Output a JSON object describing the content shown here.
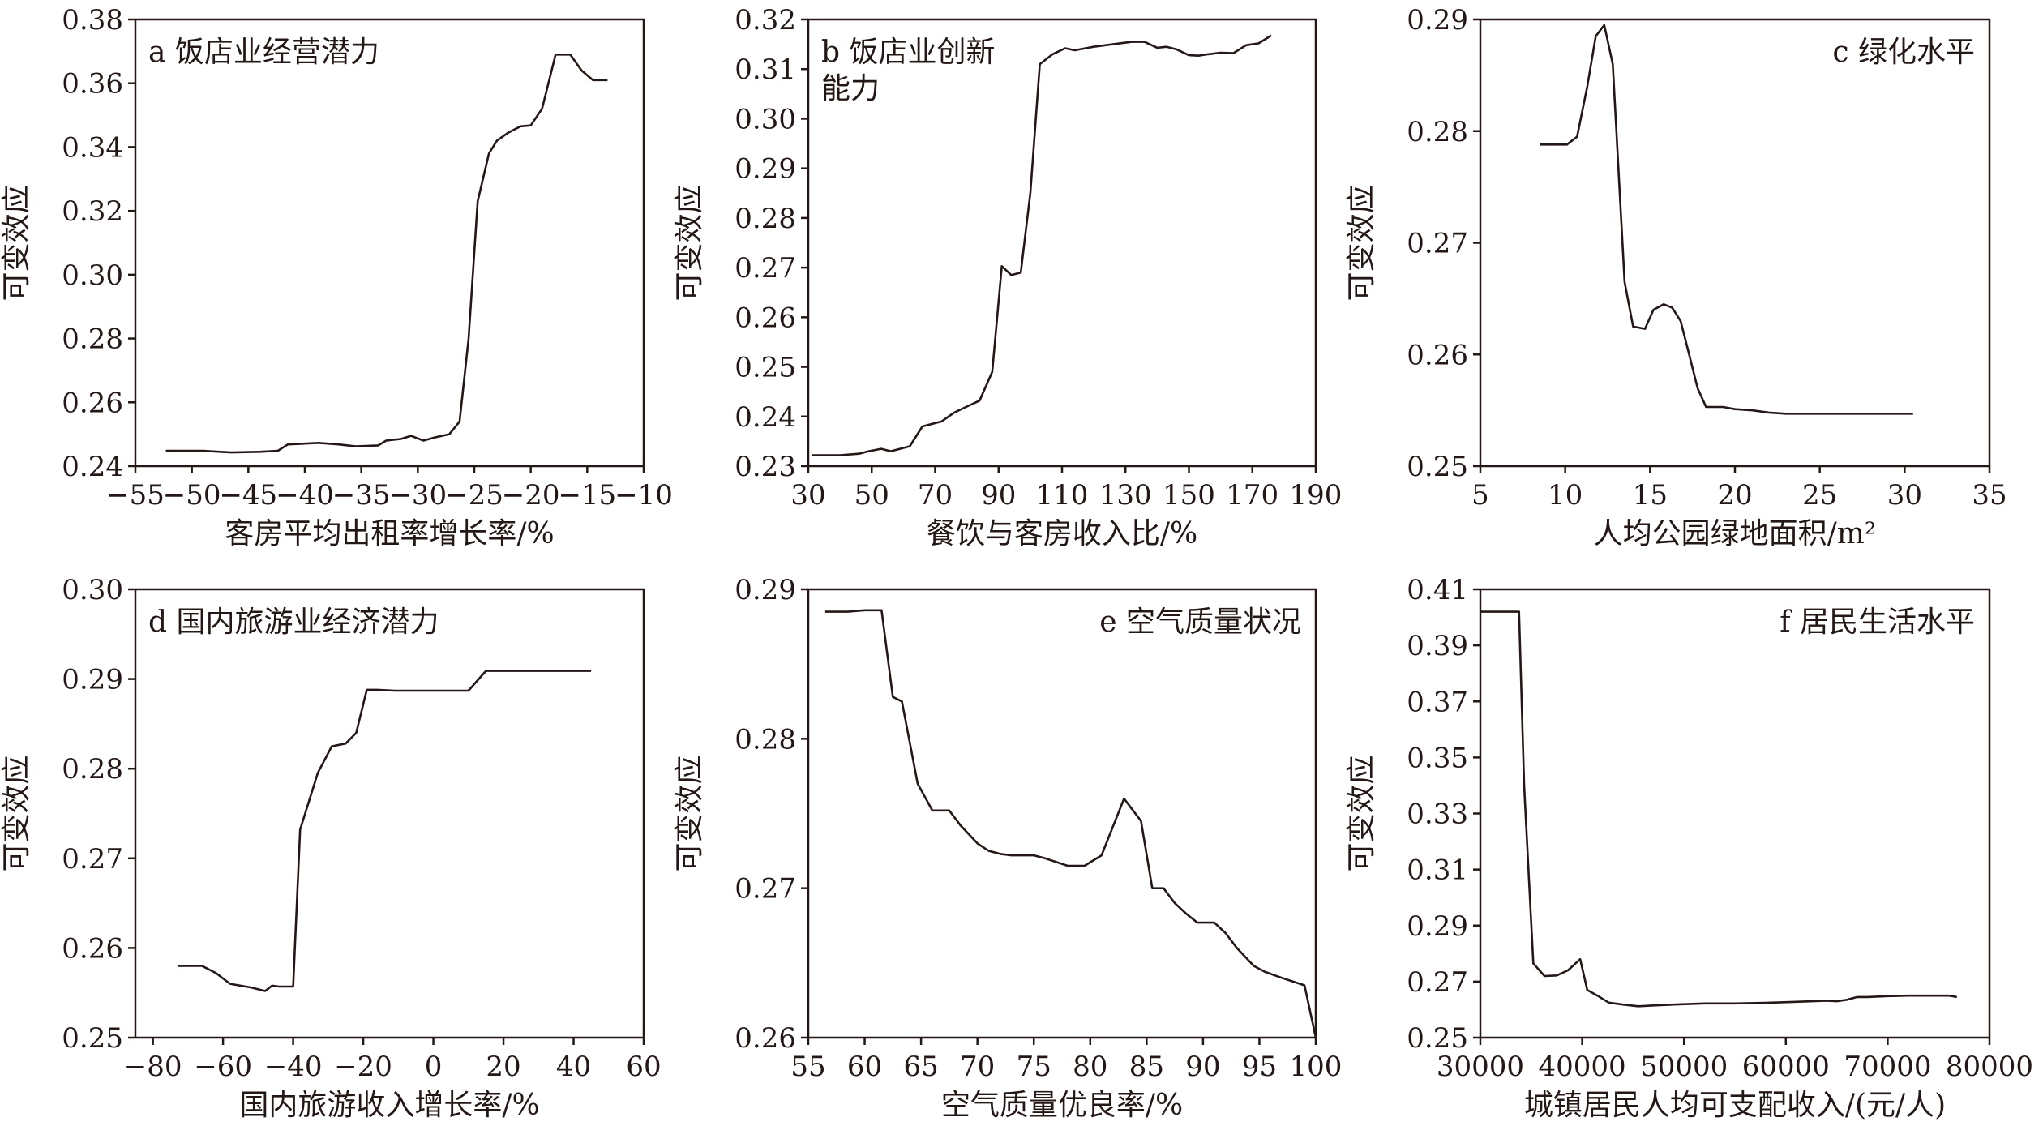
{
  "figure": {
    "ylabel_common": "可变效应"
  },
  "chart_data": [
    {
      "type": "line",
      "panel_label": "a 饭店业经营潜力",
      "xlabel": "客房平均出租率增长率/%",
      "ylabel": "可变效应",
      "xlim": [
        -55,
        -10
      ],
      "ylim": [
        0.24,
        0.38
      ],
      "xticks": [
        -55,
        -50,
        -45,
        -40,
        -35,
        -30,
        -25,
        -20,
        -15,
        -10
      ],
      "yticks": [
        0.24,
        0.26,
        0.28,
        0.3,
        0.32,
        0.34,
        0.36,
        0.38
      ],
      "xtick_labels": [
        "−55",
        "−50",
        "−45",
        "−40",
        "−35",
        "−30",
        "−25",
        "−20",
        "−15",
        "−10"
      ],
      "ytick_labels": [
        "0.24",
        "0.26",
        "0.28",
        "0.30",
        "0.32",
        "0.34",
        "0.36",
        "0.38"
      ],
      "legend": "top-left",
      "grid": false,
      "x": [
        -52.3,
        -49,
        -46.5,
        -44,
        -42.4,
        -41.5,
        -40.3,
        -38.8,
        -37,
        -35.5,
        -33.5,
        -32.8,
        -31.5,
        -30.6,
        -29.5,
        -28.5,
        -27.2,
        -26.3,
        -25.5,
        -24.7,
        -23.7,
        -23,
        -22,
        -20.9,
        -20,
        -19,
        -17.8,
        -16.5,
        -15.5,
        -14.5,
        -13.2
      ],
      "y": [
        0.2448,
        0.2448,
        0.2443,
        0.2445,
        0.2448,
        0.2468,
        0.247,
        0.2473,
        0.2468,
        0.2462,
        0.2465,
        0.248,
        0.2485,
        0.2495,
        0.248,
        0.249,
        0.25,
        0.254,
        0.28,
        0.323,
        0.338,
        0.342,
        0.3445,
        0.3465,
        0.3468,
        0.352,
        0.369,
        0.369,
        0.364,
        0.361,
        0.361
      ]
    },
    {
      "type": "line",
      "panel_label": "b 饭店业创新能力",
      "xlabel": "餐饮与客房收入比/%",
      "ylabel": "可变效应",
      "xlim": [
        30,
        190
      ],
      "ylim": [
        0.23,
        0.32
      ],
      "xticks": [
        30,
        50,
        70,
        90,
        110,
        130,
        150,
        170,
        190
      ],
      "yticks": [
        0.23,
        0.24,
        0.25,
        0.26,
        0.27,
        0.28,
        0.29,
        0.3,
        0.31,
        0.32
      ],
      "xtick_labels": [
        "30",
        "50",
        "70",
        "90",
        "110",
        "130",
        "150",
        "170",
        "190"
      ],
      "ytick_labels": [
        "0.23",
        "0.24",
        "0.25",
        "0.26",
        "0.27",
        "0.28",
        "0.29",
        "0.30",
        "0.31",
        "0.32"
      ],
      "legend": "top-left",
      "grid": false,
      "x": [
        31,
        40,
        46,
        49,
        53,
        56,
        62,
        66,
        72,
        76,
        80,
        84,
        88,
        91,
        94,
        97,
        100,
        103,
        107,
        111,
        114,
        120,
        126,
        132,
        136,
        140,
        143,
        146,
        150,
        153,
        156,
        160,
        164,
        168,
        172,
        176
      ],
      "y": [
        0.2322,
        0.2322,
        0.2325,
        0.233,
        0.2335,
        0.233,
        0.234,
        0.238,
        0.239,
        0.2408,
        0.242,
        0.2432,
        0.249,
        0.2703,
        0.2685,
        0.269,
        0.285,
        0.311,
        0.313,
        0.3142,
        0.3138,
        0.3145,
        0.315,
        0.3155,
        0.3155,
        0.3143,
        0.3145,
        0.314,
        0.3128,
        0.3127,
        0.313,
        0.3133,
        0.3132,
        0.3148,
        0.3152,
        0.3168
      ]
    },
    {
      "type": "line",
      "panel_label": "c 绿化水平",
      "xlabel": "人均公园绿地面积/m²",
      "ylabel": "可变效应",
      "xlim": [
        5,
        35
      ],
      "ylim": [
        0.25,
        0.29
      ],
      "xticks": [
        5,
        10,
        15,
        20,
        25,
        30,
        35
      ],
      "yticks": [
        0.25,
        0.26,
        0.27,
        0.28,
        0.29
      ],
      "xtick_labels": [
        "5",
        "10",
        "15",
        "20",
        "25",
        "30",
        "35"
      ],
      "ytick_labels": [
        "0.25",
        "0.26",
        "0.27",
        "0.28",
        "0.29"
      ],
      "legend": "top-right",
      "grid": false,
      "x": [
        8.5,
        9.3,
        10.1,
        10.7,
        11.3,
        11.8,
        12.3,
        12.8,
        13.5,
        14.0,
        14.7,
        15.2,
        15.8,
        16.3,
        16.8,
        17.3,
        17.8,
        18.3,
        18.7,
        19.3,
        20.0,
        21.0,
        22.0,
        23.0,
        24.0,
        26.0,
        28.0,
        30.5
      ],
      "y": [
        0.2788,
        0.2788,
        0.2788,
        0.2795,
        0.284,
        0.2885,
        0.2895,
        0.286,
        0.2665,
        0.2625,
        0.2623,
        0.264,
        0.2645,
        0.2642,
        0.263,
        0.26,
        0.257,
        0.2553,
        0.2553,
        0.2553,
        0.2551,
        0.255,
        0.2548,
        0.2547,
        0.2547,
        0.2547,
        0.2547,
        0.2547
      ]
    },
    {
      "type": "line",
      "panel_label": "d 国内旅游业经济潜力",
      "xlabel": "国内旅游收入增长率/%",
      "ylabel": "可变效应",
      "xlim": [
        -85,
        60
      ],
      "ylim": [
        0.25,
        0.3
      ],
      "xticks": [
        -80,
        -60,
        -40,
        -20,
        0,
        20,
        40,
        60
      ],
      "yticks": [
        0.25,
        0.26,
        0.27,
        0.28,
        0.29,
        0.3
      ],
      "xtick_labels": [
        "−80",
        "−60",
        "−40",
        "−20",
        "0",
        "20",
        "40",
        "60"
      ],
      "ytick_labels": [
        "0.25",
        "0.26",
        "0.27",
        "0.28",
        "0.29",
        "0.30"
      ],
      "legend": "top-left",
      "grid": false,
      "x": [
        -73,
        -66,
        -62,
        -58,
        -52,
        -48,
        -46,
        -44,
        -40,
        -38,
        -33,
        -29,
        -25,
        -22,
        -19,
        -16,
        -11,
        -6,
        0,
        5,
        10,
        15,
        22,
        30,
        38,
        45
      ],
      "y": [
        0.258,
        0.258,
        0.2572,
        0.256,
        0.2556,
        0.2552,
        0.2558,
        0.2557,
        0.2557,
        0.2732,
        0.2795,
        0.2825,
        0.2828,
        0.284,
        0.2888,
        0.2888,
        0.2887,
        0.2887,
        0.2887,
        0.2887,
        0.2887,
        0.2909,
        0.2909,
        0.2909,
        0.2909,
        0.2909
      ]
    },
    {
      "type": "line",
      "panel_label": "e 空气质量状况",
      "xlabel": "空气质量优良率/%",
      "ylabel": "可变效应",
      "xlim": [
        55,
        100
      ],
      "ylim": [
        0.26,
        0.29
      ],
      "xticks": [
        55,
        60,
        65,
        70,
        75,
        80,
        85,
        90,
        95,
        100
      ],
      "yticks": [
        0.26,
        0.27,
        0.28,
        0.29
      ],
      "xtick_labels": [
        "55",
        "60",
        "65",
        "70",
        "75",
        "80",
        "85",
        "90",
        "95",
        "100"
      ],
      "ytick_labels": [
        "0.26",
        "0.27",
        "0.28",
        "0.29"
      ],
      "legend": "top-right",
      "grid": false,
      "x": [
        56.5,
        58.5,
        60,
        61.5,
        62.5,
        63.3,
        64.7,
        66,
        67.5,
        68.5,
        70,
        71,
        72,
        73,
        75,
        76,
        78,
        79.5,
        81,
        83,
        84.5,
        85.5,
        86.5,
        87.5,
        88.5,
        89.5,
        91,
        92,
        93,
        94.5,
        95.5,
        97,
        99,
        100
      ],
      "y": [
        0.2885,
        0.2885,
        0.2886,
        0.2886,
        0.2828,
        0.2825,
        0.277,
        0.2752,
        0.2752,
        0.2742,
        0.273,
        0.2725,
        0.2723,
        0.2722,
        0.2722,
        0.272,
        0.2715,
        0.2715,
        0.2722,
        0.276,
        0.2745,
        0.27,
        0.27,
        0.269,
        0.2683,
        0.2677,
        0.2677,
        0.267,
        0.266,
        0.2648,
        0.2644,
        0.264,
        0.2635,
        0.26
      ]
    },
    {
      "type": "line",
      "panel_label": "f 居民生活水平",
      "xlabel": "城镇居民人均可支配收入/(元/人)",
      "ylabel": "可变效应",
      "xlim": [
        30000,
        80000
      ],
      "ylim": [
        0.25,
        0.41
      ],
      "xticks": [
        30000,
        40000,
        50000,
        60000,
        70000,
        80000
      ],
      "yticks": [
        0.25,
        0.27,
        0.29,
        0.31,
        0.33,
        0.35,
        0.37,
        0.39,
        0.41
      ],
      "xtick_labels": [
        "30000",
        "40000",
        "50000",
        "60000",
        "70000",
        "80000"
      ],
      "ytick_labels": [
        "0.25",
        "0.27",
        "0.29",
        "0.31",
        "0.33",
        "0.35",
        "0.37",
        "0.39",
        "0.41"
      ],
      "legend": "top-right",
      "grid": false,
      "x": [
        30000,
        33800,
        34300,
        35200,
        36300,
        37500,
        38600,
        39800,
        40500,
        41500,
        42600,
        44000,
        45500,
        47000,
        49000,
        52000,
        55000,
        58000,
        61000,
        64000,
        65000,
        66000,
        67000,
        68000,
        70000,
        72000,
        74000,
        76000,
        76800
      ],
      "y": [
        0.402,
        0.402,
        0.34,
        0.2765,
        0.272,
        0.2722,
        0.274,
        0.278,
        0.267,
        0.265,
        0.2625,
        0.2618,
        0.2612,
        0.2615,
        0.2618,
        0.2622,
        0.2622,
        0.2624,
        0.2628,
        0.2632,
        0.263,
        0.2635,
        0.2645,
        0.2645,
        0.2648,
        0.265,
        0.265,
        0.265,
        0.2645
      ]
    }
  ]
}
